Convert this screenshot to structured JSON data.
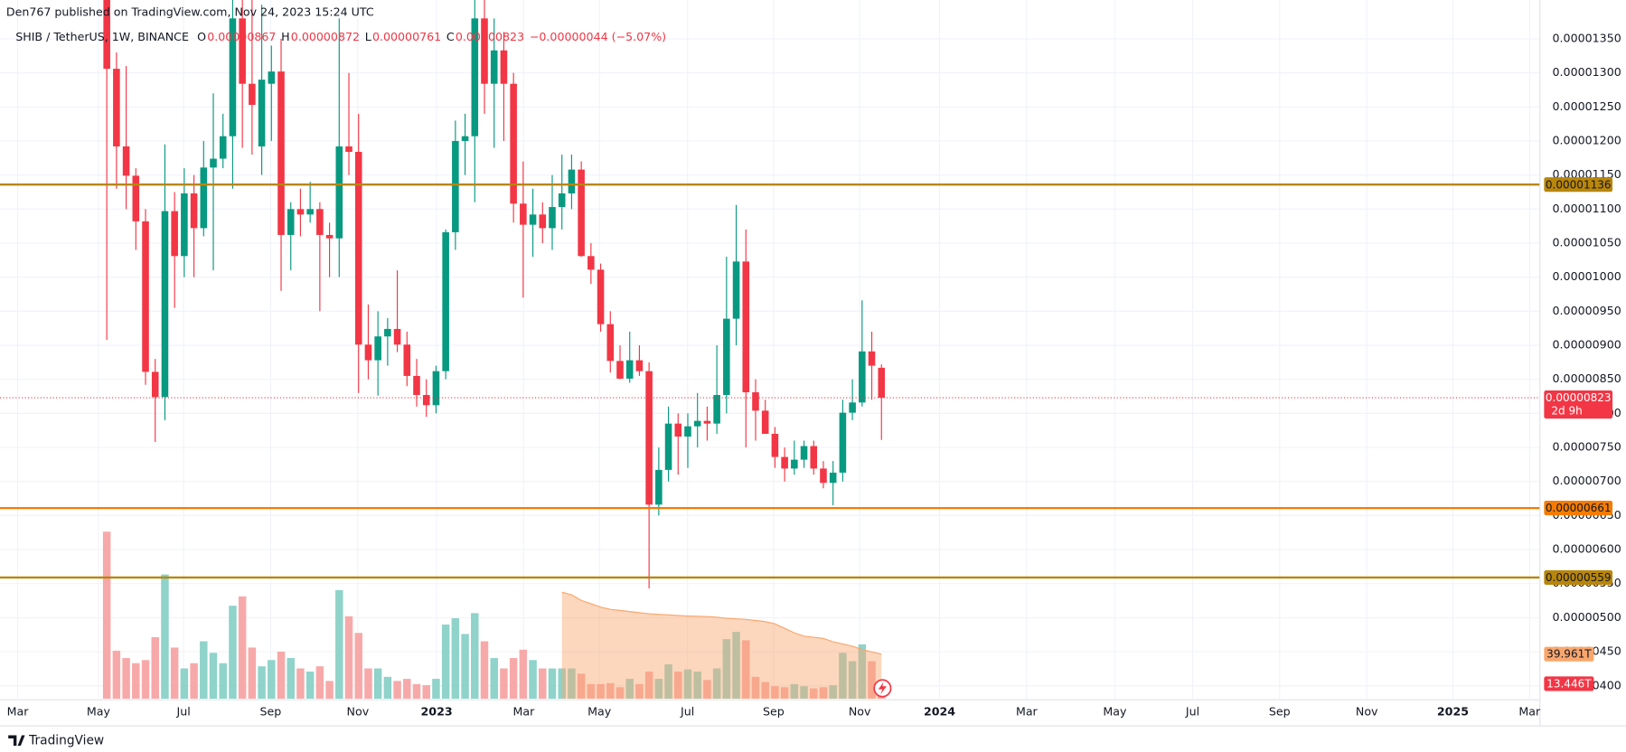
{
  "header": "Den767 published on TradingView.com, Nov 24, 2023 15:24 UTC",
  "footer": "TradingView",
  "chart_data": {
    "type": "candlestick",
    "symbol": "SHIB / TetherUS, 1W, BINANCE",
    "ohlc_legend": [
      {
        "key": "O",
        "value": "0.00000867"
      },
      {
        "key": "H",
        "value": "0.00000872"
      },
      {
        "key": "L",
        "value": "0.00000761"
      },
      {
        "key": "C",
        "value": "0.00000823"
      }
    ],
    "change": "−0.00000044 (−5.07%)",
    "up_color": "#089981",
    "down_color": "#f23645",
    "ohlc": [
      [
        1.42e-05,
        1.48e-05,
        9.08e-06,
        1.306e-05
      ],
      [
        1.306e-05,
        1.33e-05,
        1.13e-05,
        1.192e-05
      ],
      [
        1.192e-05,
        1.31e-05,
        1.1e-05,
        1.149e-05
      ],
      [
        1.149e-05,
        1.16e-05,
        1.04e-05,
        1.082e-05
      ],
      [
        1.082e-05,
        1.1e-05,
        8.42e-06,
        8.61e-06
      ],
      [
        8.61e-06,
        8.8e-06,
        7.58e-06,
        8.24e-06
      ],
      [
        8.24e-06,
        1.195e-05,
        7.9e-06,
        1.097e-05
      ],
      [
        1.097e-05,
        1.125e-05,
        9.55e-06,
        1.031e-05
      ],
      [
        1.031e-05,
        1.16e-05,
        1e-05,
        1.123e-05
      ],
      [
        1.123e-05,
        1.15e-05,
        1e-05,
        1.072e-05
      ],
      [
        1.072e-05,
        1.2e-05,
        1.06e-05,
        1.161e-05
      ],
      [
        1.161e-05,
        1.27e-05,
        1.01e-05,
        1.174e-05
      ],
      [
        1.174e-05,
        1.24e-05,
        1.16e-05,
        1.207e-05
      ],
      [
        1.207e-05,
        1.42e-05,
        1.13e-05,
        1.38e-05
      ],
      [
        1.38e-05,
        1.43e-05,
        1.19e-05,
        1.284e-05
      ],
      [
        1.284e-05,
        1.42e-05,
        1.18e-05,
        1.253e-05
      ],
      [
        1.192e-05,
        1.4e-05,
        1.15e-05,
        1.29e-05
      ],
      [
        1.284e-05,
        1.34e-05,
        1.2e-05,
        1.302e-05
      ],
      [
        1.302e-05,
        1.35e-05,
        9.8e-06,
        1.062e-05
      ],
      [
        1.062e-05,
        1.11e-05,
        1.01e-05,
        1.1e-05
      ],
      [
        1.1e-05,
        1.13e-05,
        1.06e-05,
        1.092e-05
      ],
      [
        1.092e-05,
        1.14e-05,
        1.08e-05,
        1.1e-05
      ],
      [
        1.1e-05,
        1.11e-05,
        9.5e-06,
        1.062e-05
      ],
      [
        1.062e-05,
        1.08e-05,
        1e-05,
        1.057e-05
      ],
      [
        1.057e-05,
        1.38e-05,
        1e-05,
        1.192e-05
      ],
      [
        1.192e-05,
        1.3e-05,
        1.15e-05,
        1.184e-05
      ],
      [
        1.184e-05,
        1.24e-05,
        8.3e-06,
        9.01e-06
      ],
      [
        9.01e-06,
        9.6e-06,
        8.5e-06,
        8.78e-06
      ],
      [
        8.78e-06,
        9.5e-06,
        8.26e-06,
        9.13e-06
      ],
      [
        9.13e-06,
        9.4e-06,
        8.7e-06,
        9.24e-06
      ],
      [
        9.24e-06,
        1.01e-05,
        8.9e-06,
        9.01e-06
      ],
      [
        9.01e-06,
        9.2e-06,
        8.4e-06,
        8.55e-06
      ],
      [
        8.55e-06,
        8.8e-06,
        8.1e-06,
        8.27e-06
      ],
      [
        8.27e-06,
        8.5e-06,
        7.95e-06,
        8.12e-06
      ],
      [
        8.12e-06,
        8.7e-06,
        8e-06,
        8.62e-06
      ],
      [
        8.62e-06,
        1.07e-05,
        8.5e-06,
        1.066e-05
      ],
      [
        1.066e-05,
        1.23e-05,
        1.04e-05,
        1.2e-05
      ],
      [
        1.2e-05,
        1.24e-05,
        1.15e-05,
        1.207e-05
      ],
      [
        1.207e-05,
        1.44e-05,
        1.11e-05,
        1.38e-05
      ],
      [
        1.38e-05,
        1.45e-05,
        1.24e-05,
        1.284e-05
      ],
      [
        1.284e-05,
        1.38e-05,
        1.19e-05,
        1.333e-05
      ],
      [
        1.333e-05,
        1.36e-05,
        1.2e-05,
        1.284e-05
      ],
      [
        1.284e-05,
        1.3e-05,
        1.08e-05,
        1.108e-05
      ],
      [
        1.108e-05,
        1.17e-05,
        9.7e-06,
        1.077e-05
      ],
      [
        1.077e-05,
        1.13e-05,
        1.03e-05,
        1.092e-05
      ],
      [
        1.092e-05,
        1.11e-05,
        1.05e-05,
        1.072e-05
      ],
      [
        1.072e-05,
        1.15e-05,
        1.04e-05,
        1.103e-05
      ],
      [
        1.103e-05,
        1.18e-05,
        1.07e-05,
        1.123e-05
      ],
      [
        1.123e-05,
        1.18e-05,
        1.1e-05,
        1.158e-05
      ],
      [
        1.158e-05,
        1.17e-05,
        1.03e-05,
        1.031e-05
      ],
      [
        1.031e-05,
        1.05e-05,
        9.9e-06,
        1.011e-05
      ],
      [
        1.011e-05,
        1.02e-05,
        9.2e-06,
        9.31e-06
      ],
      [
        9.31e-06,
        9.5e-06,
        8.6e-06,
        8.77e-06
      ],
      [
        8.77e-06,
        9e-06,
        8.5e-06,
        8.51e-06
      ],
      [
        8.51e-06,
        9.2e-06,
        8.45e-06,
        8.78e-06
      ],
      [
        8.78e-06,
        9e-06,
        8.55e-06,
        8.62e-06
      ],
      [
        8.62e-06,
        8.75e-06,
        5.43e-06,
        6.66e-06
      ],
      [
        6.66e-06,
        7.5e-06,
        6.5e-06,
        7.17e-06
      ],
      [
        7.17e-06,
        8.1e-06,
        7e-06,
        7.85e-06
      ],
      [
        7.85e-06,
        8e-06,
        7.1e-06,
        7.66e-06
      ],
      [
        7.66e-06,
        8e-06,
        7.2e-06,
        7.81e-06
      ],
      [
        7.81e-06,
        8.3e-06,
        7.5e-06,
        7.89e-06
      ],
      [
        7.89e-06,
        8.1e-06,
        7.6e-06,
        7.85e-06
      ],
      [
        7.85e-06,
        9e-06,
        7.7e-06,
        8.27e-06
      ],
      [
        8.27e-06,
        1.03e-05,
        8e-06,
        9.39e-06
      ],
      [
        9.39e-06,
        1.106e-05,
        9e-06,
        1.023e-05
      ],
      [
        1.023e-05,
        1.07e-05,
        7.5e-06,
        8.31e-06
      ],
      [
        8.31e-06,
        8.5e-06,
        7.6e-06,
        8.04e-06
      ],
      [
        8.04e-06,
        8.2e-06,
        7.7e-06,
        7.7e-06
      ],
      [
        7.7e-06,
        7.8e-06,
        7.2e-06,
        7.36e-06
      ],
      [
        7.36e-06,
        7.5e-06,
        7e-06,
        7.19e-06
      ],
      [
        7.19e-06,
        7.6e-06,
        7.1e-06,
        7.32e-06
      ],
      [
        7.32e-06,
        7.6e-06,
        7.2e-06,
        7.52e-06
      ],
      [
        7.52e-06,
        7.6e-06,
        7.1e-06,
        7.19e-06
      ],
      [
        7.19e-06,
        7.3e-06,
        6.9e-06,
        6.98e-06
      ],
      [
        6.98e-06,
        7.3e-06,
        6.65e-06,
        7.13e-06
      ],
      [
        7.13e-06,
        8.2e-06,
        7e-06,
        8.01e-06
      ],
      [
        8.01e-06,
        8.5e-06,
        7.9e-06,
        8.16e-06
      ],
      [
        8.16e-06,
        9.66e-06,
        8.1e-06,
        8.91e-06
      ],
      [
        8.91e-06,
        9.2e-06,
        8.2e-06,
        8.7e-06
      ],
      [
        8.67e-06,
        8.72e-06,
        7.61e-06,
        8.23e-06
      ]
    ],
    "volume": {
      "values": [
        149.5,
        43.0,
        36.4,
        31.8,
        34.6,
        55.1,
        111.2,
        45.8,
        27.1,
        31.8,
        51.4,
        41.1,
        31.8,
        83.2,
        91.6,
        45.8,
        29.0,
        34.6,
        42.1,
        36.4,
        27.1,
        24.3,
        29.0,
        15.9,
        97.2,
        73.8,
        58.9,
        27.1,
        27.1,
        19.6,
        15.9,
        17.8,
        13.1,
        12.1,
        17.8,
        66.4,
        72.0,
        57.9,
        76.6,
        51.4,
        36.4,
        27.1,
        36.4,
        43.9,
        34.6,
        27.1,
        27.1,
        27.1,
        27.1,
        22.4,
        13.1,
        13.1,
        14.0,
        10.3,
        17.8,
        13.1,
        24.3,
        17.8,
        30.8,
        24.3,
        26.2,
        24.3,
        16.8,
        27.1,
        53.3,
        59.8,
        52.3,
        19.6,
        15.0,
        11.2,
        10.3,
        13.1,
        11.2,
        9.3,
        10.3,
        12.1,
        41.1,
        33.6,
        48.6,
        33.6,
        13.446
      ],
      "last_label": "13.446T",
      "up_color": "#8fd3ca",
      "down_color": "#f7a9a9",
      "label_color": "#f23645"
    },
    "volume_ma": {
      "values": [
        null,
        null,
        null,
        null,
        null,
        null,
        null,
        null,
        null,
        null,
        null,
        null,
        null,
        null,
        null,
        null,
        null,
        null,
        null,
        null,
        null,
        null,
        null,
        null,
        null,
        null,
        null,
        null,
        null,
        null,
        null,
        null,
        null,
        null,
        null,
        null,
        null,
        null,
        null,
        null,
        null,
        null,
        null,
        null,
        null,
        null,
        null,
        95.3,
        93,
        88,
        85,
        82,
        80,
        79,
        78,
        77,
        76,
        75.5,
        75,
        74.5,
        74,
        73.8,
        73.5,
        73,
        72,
        71.5,
        71,
        70,
        69,
        67,
        63,
        59,
        56,
        55,
        54,
        51,
        49,
        47,
        44,
        42,
        39.961
      ],
      "last_label": "39.961T",
      "color": "#f9a66c"
    },
    "vlim": [
      0,
      625.2
    ],
    "ylim": [
      3.81e-06,
      1.407e-05
    ],
    "yticks": [
      {
        "value": 1.35e-05,
        "label": "0.00001350"
      },
      {
        "value": 1.3e-05,
        "label": "0.00001300"
      },
      {
        "value": 1.25e-05,
        "label": "0.00001250"
      },
      {
        "value": 1.2e-05,
        "label": "0.00001200"
      },
      {
        "value": 1.15e-05,
        "label": "0.00001150"
      },
      {
        "value": 1.1e-05,
        "label": "0.00001100"
      },
      {
        "value": 1.05e-05,
        "label": "0.00001050"
      },
      {
        "value": 1e-05,
        "label": "0.00001000"
      },
      {
        "value": 9.5e-06,
        "label": "0.00000950"
      },
      {
        "value": 9e-06,
        "label": "0.00000900"
      },
      {
        "value": 8.5e-06,
        "label": "0.00000850"
      },
      {
        "value": 8e-06,
        "label": "0.00000800"
      },
      {
        "value": 7.5e-06,
        "label": "0.00000750"
      },
      {
        "value": 7e-06,
        "label": "0.00000700"
      },
      {
        "value": 6.5e-06,
        "label": "0.00000650"
      },
      {
        "value": 6e-06,
        "label": "0.00000600"
      },
      {
        "value": 5.5e-06,
        "label": "0.00000550"
      },
      {
        "value": 5e-06,
        "label": "0.00000500"
      },
      {
        "value": 4.5e-06,
        "label": "0.00000450"
      },
      {
        "value": 4e-06,
        "label": "0.00000400"
      }
    ],
    "xlim": [
      -11.03,
      148
    ],
    "xticks": [
      {
        "value": -9.21,
        "label": "Mar"
      },
      {
        "value": -0.86,
        "label": "May"
      },
      {
        "value": 7.93,
        "label": "Jul"
      },
      {
        "value": 16.92,
        "label": "Sep"
      },
      {
        "value": 25.92,
        "label": "Nov"
      },
      {
        "value": 34.06,
        "label": "2023"
      },
      {
        "value": 43.05,
        "label": "Mar"
      },
      {
        "value": 50.87,
        "label": "May"
      },
      {
        "value": 59.97,
        "label": "Jul"
      },
      {
        "value": 68.86,
        "label": "Sep"
      },
      {
        "value": 77.75,
        "label": "Nov"
      },
      {
        "value": 86.0,
        "label": "2024"
      },
      {
        "value": 94.99,
        "label": "Mar"
      },
      {
        "value": 104.1,
        "label": "May"
      },
      {
        "value": 112.13,
        "label": "Jul"
      },
      {
        "value": 121.12,
        "label": "Sep"
      },
      {
        "value": 130.12,
        "label": "Nov"
      },
      {
        "value": 139.01,
        "label": "2025"
      },
      {
        "value": 146.93,
        "label": "Mar"
      }
    ],
    "levels": [
      {
        "value": 1.136e-05,
        "label": "0.00001136",
        "color": "#b8860b"
      },
      {
        "value": 6.61e-06,
        "label": "0.00000661",
        "color": "#f57c00"
      },
      {
        "value": 5.59e-06,
        "label": "0.00000559",
        "color": "#b8860b"
      }
    ],
    "last_price": {
      "value": 8.23e-06,
      "label": "0.00000823",
      "countdown": "2d 9h",
      "color": "#f23645"
    },
    "grid": true
  }
}
